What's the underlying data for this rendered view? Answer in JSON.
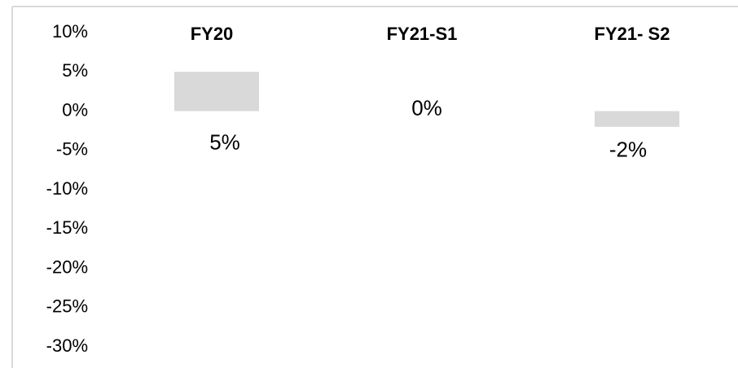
{
  "chart_data": {
    "type": "bar",
    "categories": [
      "FY20",
      "FY21-S1",
      "FY21- S2"
    ],
    "values": [
      5,
      0,
      -2
    ],
    "value_labels": [
      "5%",
      "0%",
      "-2%"
    ],
    "color": "#d9d9d9",
    "ylim": [
      -30,
      10
    ],
    "yticks": [
      {
        "value": 10,
        "label": "10%"
      },
      {
        "value": 5,
        "label": "5%"
      },
      {
        "value": 0,
        "label": "0%"
      },
      {
        "value": -5,
        "label": "-5%"
      },
      {
        "value": -10,
        "label": "-10%"
      },
      {
        "value": -15,
        "label": "-15%"
      },
      {
        "value": -20,
        "label": "-20%"
      },
      {
        "value": -25,
        "label": "-25%"
      },
      {
        "value": -30,
        "label": "-30%"
      }
    ],
    "grid": false
  }
}
